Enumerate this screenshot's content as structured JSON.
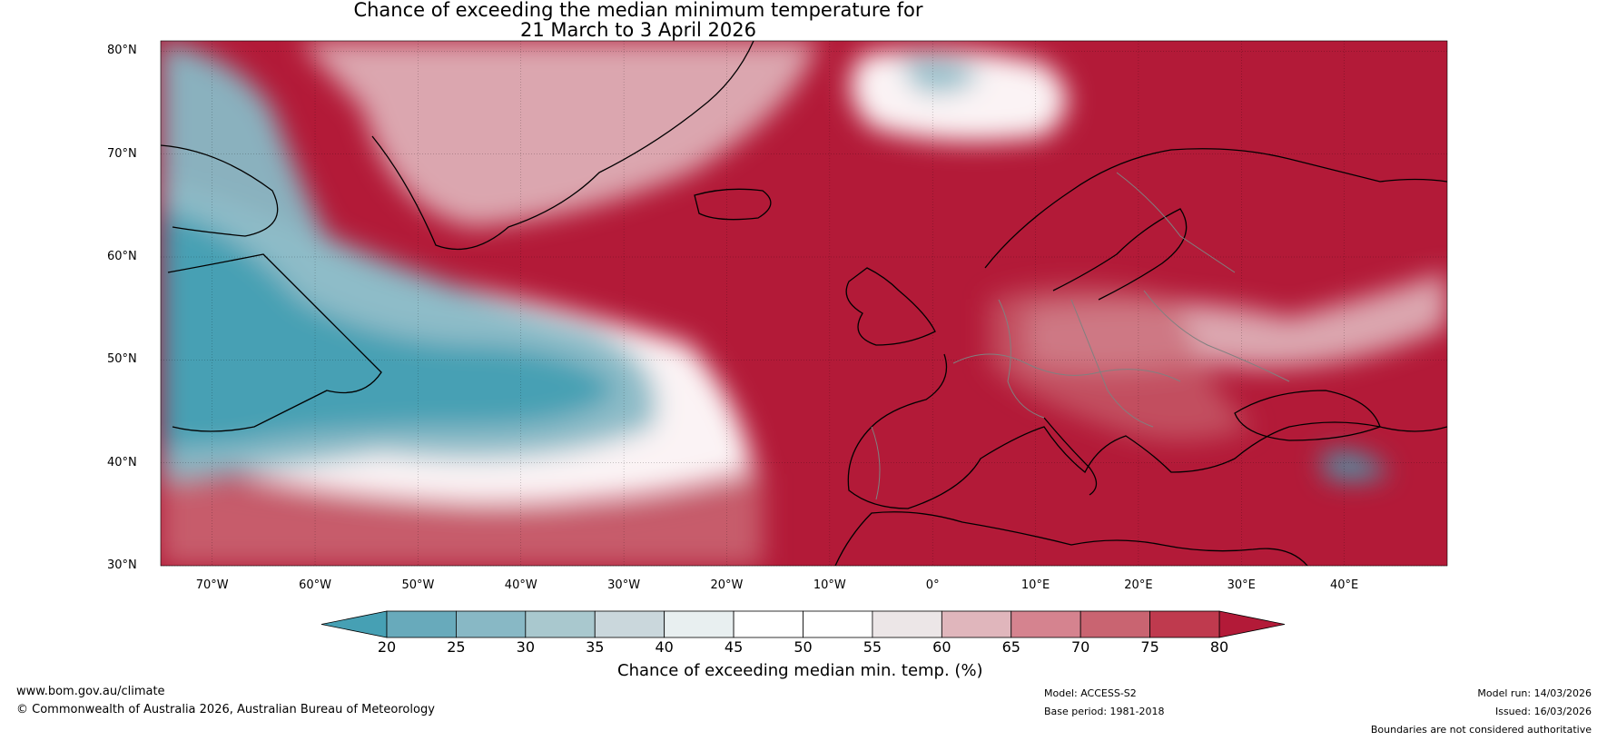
{
  "title_line1": "Chance of exceeding the median minimum temperature for",
  "title_line2": "21 March to 3 April 2026",
  "map": {
    "projection": "Plate Carree",
    "lon_range": [
      -75,
      50
    ],
    "lat_range": [
      30,
      81
    ],
    "lat_ticks": [
      {
        "value": 80,
        "label": "80°N"
      },
      {
        "value": 70,
        "label": "70°N"
      },
      {
        "value": 60,
        "label": "60°N"
      },
      {
        "value": 50,
        "label": "50°N"
      },
      {
        "value": 40,
        "label": "40°N"
      },
      {
        "value": 30,
        "label": "30°N"
      }
    ],
    "lon_ticks": [
      {
        "value": -70,
        "label": "70°W"
      },
      {
        "value": -60,
        "label": "60°W"
      },
      {
        "value": -50,
        "label": "50°W"
      },
      {
        "value": -40,
        "label": "40°W"
      },
      {
        "value": -30,
        "label": "30°W"
      },
      {
        "value": -20,
        "label": "20°W"
      },
      {
        "value": -10,
        "label": "10°W"
      },
      {
        "value": 0,
        "label": "0°"
      },
      {
        "value": 10,
        "label": "10°E"
      },
      {
        "value": 20,
        "label": "20°E"
      },
      {
        "value": 30,
        "label": "30°E"
      },
      {
        "value": 40,
        "label": "40°E"
      }
    ]
  },
  "colorbar": {
    "label": "Chance of exceeding median min. temp. (%)",
    "ticks": [
      {
        "value": 20,
        "label": "20"
      },
      {
        "value": 25,
        "label": "25"
      },
      {
        "value": 30,
        "label": "30"
      },
      {
        "value": 35,
        "label": "35"
      },
      {
        "value": 40,
        "label": "40"
      },
      {
        "value": 45,
        "label": "45"
      },
      {
        "value": 50,
        "label": "50"
      },
      {
        "value": 55,
        "label": "55"
      },
      {
        "value": 60,
        "label": "60"
      },
      {
        "value": 65,
        "label": "65"
      },
      {
        "value": 70,
        "label": "70"
      },
      {
        "value": 75,
        "label": "75"
      },
      {
        "value": 80,
        "label": "80"
      }
    ],
    "under_color": "#46a0b4",
    "over_color": "#b31a38",
    "band_colors": [
      "#68aabb",
      "#88b8c5",
      "#a9c8ce",
      "#cad7dc",
      "#e8eff0",
      "#ffffff",
      "#ffffff",
      "#ece6e7",
      "#e0b6bc",
      "#d5838f",
      "#c96471",
      "#bf3a4e"
    ]
  },
  "palette": {
    "cold": "#46a0b4",
    "cold2": "#88b8c5",
    "neutral": "#ffffff",
    "warm1": "#e0b6bc",
    "warm2": "#c96471",
    "hot": "#b31a38",
    "coast": "#000000",
    "border": "#808080"
  },
  "footer": {
    "website": "www.bom.gov.au/climate",
    "copyright": "© Commonwealth of Australia 2026, Australian Bureau of Meteorology",
    "model": "Model: ACCESS-S2",
    "base_period": "Base period: 1981-2018",
    "model_run": "Model run: 14/03/2026",
    "issued": "Issued: 16/03/2026",
    "disclaimer": "Boundaries are not considered authoritative"
  }
}
